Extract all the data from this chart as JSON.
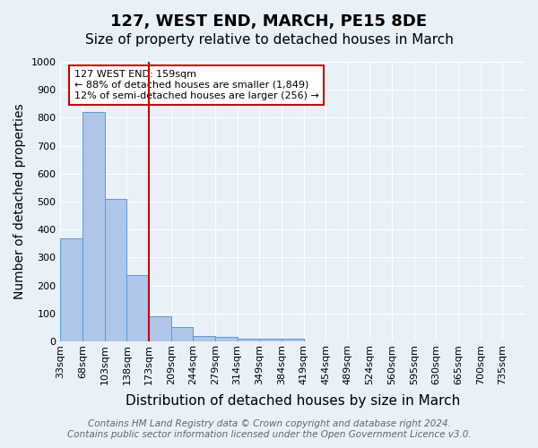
{
  "title": "127, WEST END, MARCH, PE15 8DE",
  "subtitle": "Size of property relative to detached houses in March",
  "xlabel": "Distribution of detached houses by size in March",
  "ylabel": "Number of detached properties",
  "bins": [
    "33sqm",
    "68sqm",
    "103sqm",
    "138sqm",
    "173sqm",
    "209sqm",
    "244sqm",
    "279sqm",
    "314sqm",
    "349sqm",
    "384sqm",
    "419sqm",
    "454sqm",
    "489sqm",
    "524sqm",
    "560sqm",
    "595sqm",
    "630sqm",
    "665sqm",
    "700sqm",
    "735sqm"
  ],
  "values": [
    370,
    820,
    510,
    237,
    90,
    50,
    20,
    15,
    10,
    8,
    8,
    0,
    0,
    0,
    0,
    0,
    0,
    0,
    0,
    0,
    0
  ],
  "bar_color": "#aec6e8",
  "bar_edge_color": "#5b9bd5",
  "vline_x": 4,
  "vline_color": "#cc0000",
  "annotation_text": "127 WEST END: 159sqm\n← 88% of detached houses are smaller (1,849)\n12% of semi-detached houses are larger (256) →",
  "annotation_box_color": "#ffffff",
  "annotation_box_edge": "#cc0000",
  "ylim": [
    0,
    1000
  ],
  "yticks": [
    0,
    100,
    200,
    300,
    400,
    500,
    600,
    700,
    800,
    900,
    1000
  ],
  "footer_line1": "Contains HM Land Registry data © Crown copyright and database right 2024.",
  "footer_line2": "Contains public sector information licensed under the Open Government Licence v3.0.",
  "bg_color": "#e8f0f8",
  "plot_bg_color": "#e8f0f8",
  "grid_color": "#ffffff",
  "title_fontsize": 13,
  "subtitle_fontsize": 11,
  "axis_label_fontsize": 10,
  "tick_fontsize": 8,
  "footer_fontsize": 7.5
}
